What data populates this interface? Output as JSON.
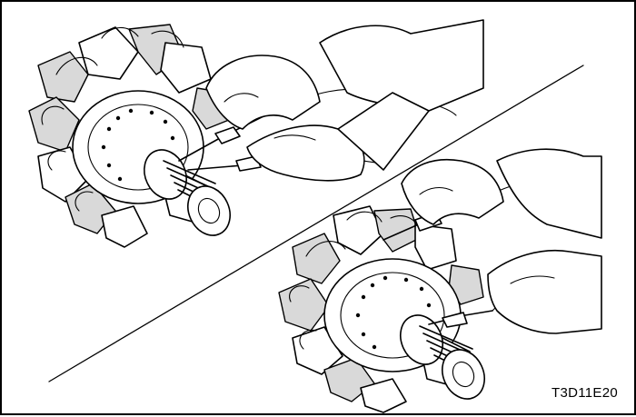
{
  "figure": {
    "code": "T3D11E20"
  }
}
